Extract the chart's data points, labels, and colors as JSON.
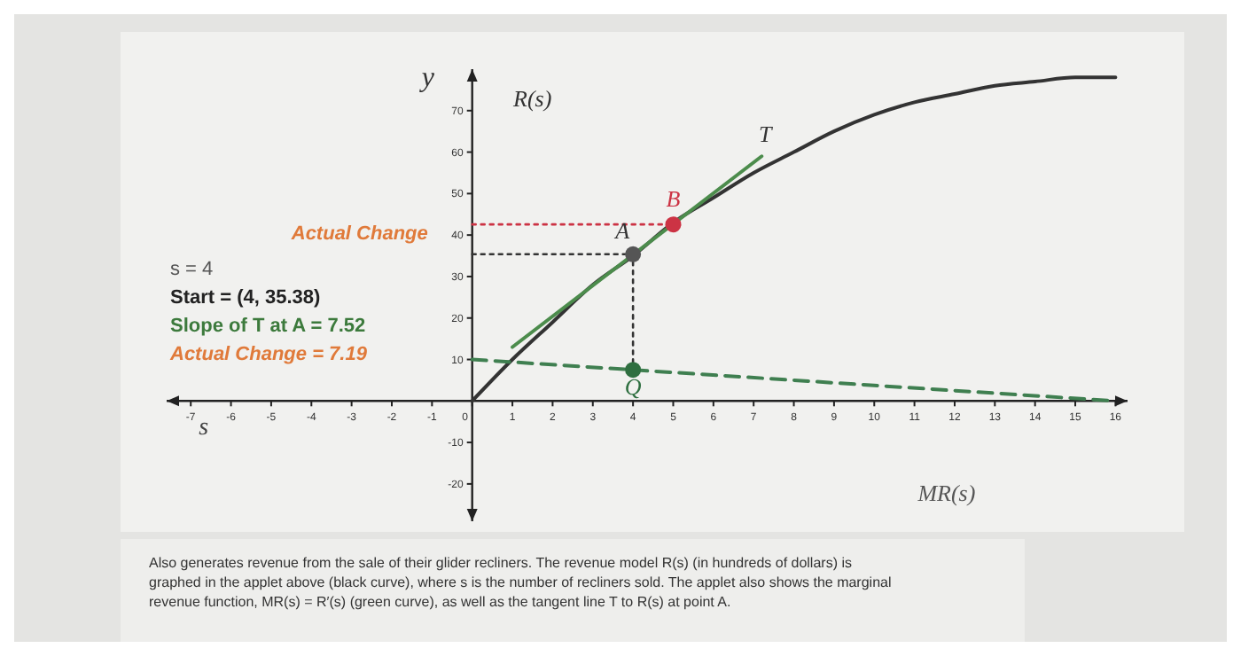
{
  "chart_data": {
    "type": "line",
    "xlabel": "s",
    "ylabel": "y",
    "xlim": [
      -7.6,
      16.3
    ],
    "ylim": [
      -29,
      80
    ],
    "xticks": [
      -7,
      -6,
      -5,
      -4,
      -3,
      -2,
      -1,
      0,
      1,
      2,
      3,
      4,
      5,
      6,
      7,
      8,
      9,
      10,
      11,
      12,
      13,
      14,
      15,
      16
    ],
    "yticks": [
      -20,
      -10,
      10,
      20,
      30,
      40,
      50,
      60,
      70
    ],
    "series": [
      {
        "color": "#333333",
        "line_style": "solid",
        "x": [
          0,
          1,
          2,
          3,
          4,
          5,
          6,
          7,
          8,
          9,
          10,
          11,
          12,
          13,
          14,
          15,
          16
        ],
        "values": [
          0,
          10,
          19,
          28,
          35,
          43,
          49,
          55,
          60,
          65,
          69,
          72,
          74,
          76,
          77,
          78,
          78
        ]
      },
      {
        "color": "#4c8c4c",
        "line_style": "solid",
        "x": [
          1,
          7.2
        ],
        "values": [
          13,
          59
        ]
      },
      {
        "color": "#3f7f50",
        "line_style": "dashed",
        "x": [
          0,
          16
        ],
        "values": [
          10,
          0
        ]
      },
      {
        "color": "#333333",
        "line_style": "dotted",
        "x": [
          0,
          4,
          4
        ],
        "values": [
          35.38,
          35.38,
          7.52
        ]
      },
      {
        "color": "#cc3344",
        "line_style": "dotted",
        "x": [
          0,
          5
        ],
        "values": [
          42.57,
          42.57
        ]
      },
      {
        "type": "scatter",
        "color": "#555555",
        "marker": "circle",
        "x": [
          4
        ],
        "values": [
          35.38
        ]
      },
      {
        "type": "scatter",
        "color": "#cc3344",
        "marker": "circle",
        "x": [
          5
        ],
        "values": [
          42.57
        ]
      },
      {
        "type": "scatter",
        "color": "#2f6f40",
        "marker": "circle",
        "x": [
          4
        ],
        "values": [
          7.52
        ]
      }
    ],
    "annotations": [
      "s = 4",
      "Start = (4, 35.38)",
      "Slope of T at A = 7.52",
      "Actual Change = 7.19",
      "Also generates revenue from the sale of their glider recliners. The revenue model R(s) (in hundreds of dollars) is graphed in the applet above (black curve), where s is the number of recliners sold. The applet also shows the marginal revenue function, MR(s) = R′(s) (green curve), as well as the tangent line T to R(s) at point A.",
      "R(s)",
      "MR(s)",
      "Actual Change",
      {
        "text": "T",
        "x": 7.2,
        "y": 59
      },
      {
        "text": "A",
        "x": 4,
        "y": 35.38
      },
      {
        "text": "B",
        "x": 5,
        "y": 42.57
      },
      {
        "text": "Q",
        "x": 4,
        "y": 7.52
      }
    ]
  }
}
